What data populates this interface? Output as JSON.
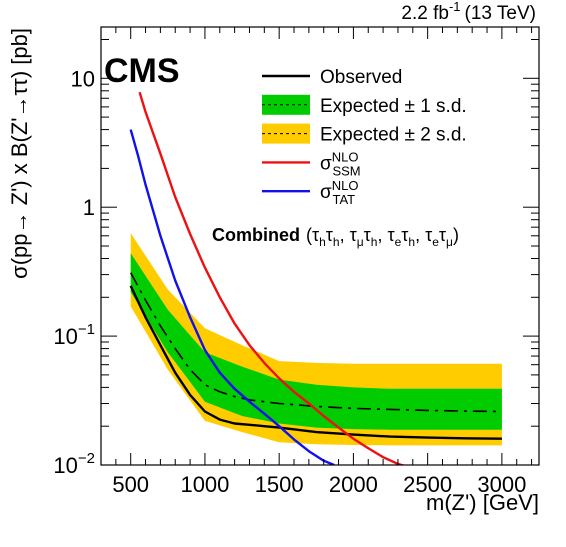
{
  "chart_data": {
    "type": "line",
    "lumi_label": "2.2 fb",
    "lumi_sup": "-1",
    "lumi_energy": "(13 TeV)",
    "experiment": "CMS",
    "channel_label": "Combined",
    "xlabel": "m(Z') [GeV]",
    "ylabel": "σ(pp→ Z') x B(Z'→ττ) [pb]",
    "y_scale": "log",
    "xlim": [
      300,
      3250
    ],
    "ylim": [
      0.01,
      25
    ],
    "x_ticks": [
      500,
      1000,
      1500,
      2000,
      2500,
      3000
    ],
    "y_ticks": [
      {
        "value": 0.01,
        "label": "10",
        "sup": "−2"
      },
      {
        "value": 0.1,
        "label": "10",
        "sup": "−1"
      },
      {
        "value": 1,
        "label": "1",
        "sup": ""
      },
      {
        "value": 10,
        "label": "10",
        "sup": ""
      }
    ],
    "x": [
      500,
      750,
      1000,
      1250,
      1500,
      1750,
      2000,
      2250,
      2500,
      2750,
      3000
    ],
    "bands": [
      {
        "name": "± 2 s.d.",
        "color": "#ffcc00",
        "low": [
          0.17,
          0.055,
          0.022,
          0.018,
          0.015,
          0.0145,
          0.0143,
          0.0142,
          0.0142,
          0.0142,
          0.0142
        ],
        "high": [
          0.63,
          0.23,
          0.115,
          0.085,
          0.064,
          0.062,
          0.061,
          0.061,
          0.061,
          0.061,
          0.061
        ]
      },
      {
        "name": "± 1 s.d.",
        "color": "#00cc00",
        "low": [
          0.22,
          0.075,
          0.031,
          0.024,
          0.021,
          0.0195,
          0.019,
          0.0188,
          0.0188,
          0.0188,
          0.0188
        ],
        "high": [
          0.44,
          0.16,
          0.075,
          0.058,
          0.046,
          0.042,
          0.04,
          0.039,
          0.039,
          0.039,
          0.039
        ]
      }
    ],
    "series": [
      {
        "name": "Expected",
        "color": "#000000",
        "dash": "dashdot",
        "x": [
          500,
          600,
          700,
          800,
          900,
          1000,
          1100,
          1200,
          1300,
          1400,
          1500,
          1750,
          2000,
          2250,
          2500,
          2750,
          3000
        ],
        "y": [
          0.31,
          0.19,
          0.12,
          0.08,
          0.055,
          0.042,
          0.037,
          0.034,
          0.032,
          0.031,
          0.03,
          0.0285,
          0.0275,
          0.027,
          0.0265,
          0.0262,
          0.026
        ]
      },
      {
        "name": "Observed",
        "color": "#000000",
        "dash": "solid",
        "x": [
          500,
          600,
          700,
          800,
          900,
          1000,
          1100,
          1200,
          1300,
          1400,
          1500,
          1750,
          2000,
          2250,
          2500,
          2750,
          3000
        ],
        "y": [
          0.245,
          0.14,
          0.085,
          0.052,
          0.035,
          0.026,
          0.0225,
          0.021,
          0.0205,
          0.02,
          0.0195,
          0.018,
          0.0172,
          0.0166,
          0.0163,
          0.0161,
          0.016
        ]
      },
      {
        "name": "SSM",
        "label": "σ",
        "sup": "NLO",
        "sub": "SSM",
        "color": "#ee1111",
        "dash": "solid",
        "x": [
          560,
          600,
          700,
          800,
          900,
          1000,
          1100,
          1200,
          1300,
          1400,
          1500,
          1600,
          1700,
          1800,
          1900,
          2000,
          2100,
          2200,
          2300,
          2350
        ],
        "y": [
          7.8,
          5.5,
          2.6,
          1.2,
          0.62,
          0.34,
          0.2,
          0.125,
          0.085,
          0.062,
          0.047,
          0.037,
          0.03,
          0.024,
          0.0195,
          0.016,
          0.0135,
          0.0115,
          0.0102,
          0.0098
        ]
      },
      {
        "name": "TAT",
        "label": "σ",
        "sup": "NLO",
        "sub": "TAT",
        "color": "#1111ee",
        "dash": "solid",
        "x": [
          500,
          550,
          600,
          700,
          800,
          900,
          1000,
          1100,
          1200,
          1300,
          1400,
          1500,
          1600,
          1700,
          1800,
          1870
        ],
        "y": [
          4.0,
          2.5,
          1.5,
          0.6,
          0.27,
          0.14,
          0.078,
          0.052,
          0.039,
          0.031,
          0.025,
          0.02,
          0.0158,
          0.0128,
          0.0108,
          0.01
        ]
      }
    ],
    "legend": {
      "placement": "top-right",
      "entries": [
        {
          "label": "Observed",
          "style": "line",
          "color": "#000000"
        },
        {
          "label": "Expected  ± 1 s.d.",
          "style": "band",
          "color": "#00cc00"
        },
        {
          "label": "Expected  ± 2 s.d.",
          "style": "band",
          "color": "#ffcc00"
        },
        {
          "label": "σ",
          "sup": "NLO",
          "sub": "SSM",
          "style": "line",
          "color": "#ee1111"
        },
        {
          "label": "σ",
          "sup": "NLO",
          "sub": "TAT",
          "style": "line",
          "color": "#1111ee"
        }
      ]
    },
    "grid": false
  }
}
